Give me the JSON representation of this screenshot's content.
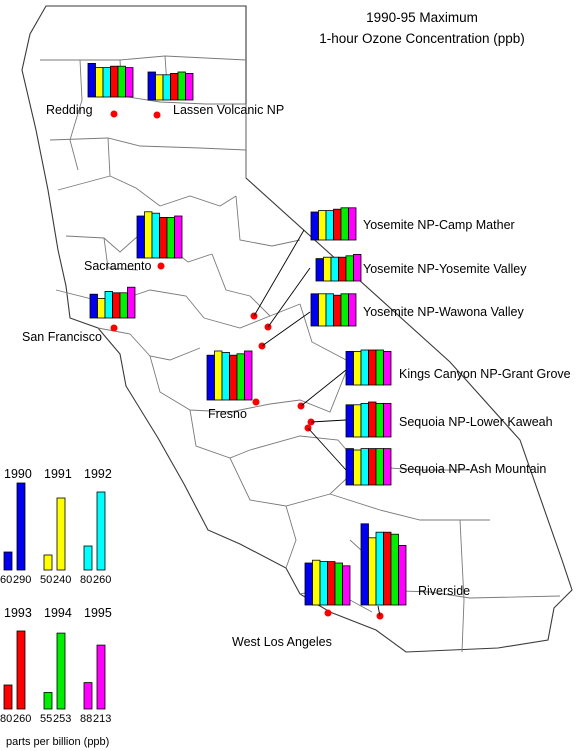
{
  "title": {
    "line1": "1990-95 Maximum",
    "line2": "1-hour Ozone Concentration (ppb)"
  },
  "colors": {
    "1990": "#0000ee",
    "1991": "#ffff00",
    "1992": "#00ffff",
    "1993": "#ff0000",
    "1994": "#00ee00",
    "1995": "#ff00ff",
    "site_dot": "#ff0000",
    "county_line": "#7a7a7a"
  },
  "chart_data": {
    "type": "bar",
    "title": "1990-95 Maximum 1-hour Ozone Concentration (ppb)",
    "unit": "parts per billion (ppb)",
    "series_years": [
      "1990",
      "1991",
      "1992",
      "1993",
      "1994",
      "1995"
    ],
    "sites": [
      {
        "name": "Redding",
        "values": [
          120,
          105,
          105,
          110,
          110,
          105
        ]
      },
      {
        "name": "Lassen Volcanic NP",
        "values": [
          100,
          90,
          90,
          95,
          100,
          95
        ]
      },
      {
        "name": "Sacramento",
        "values": [
          150,
          165,
          160,
          145,
          145,
          150
        ]
      },
      {
        "name": "San Francisco",
        "values": [
          85,
          70,
          95,
          90,
          90,
          110
        ]
      },
      {
        "name": "Yosemite NP-Camp Mather",
        "values": [
          100,
          105,
          105,
          110,
          115,
          115
        ]
      },
      {
        "name": "Yosemite NP-Yosemite Valley",
        "values": [
          80,
          85,
          85,
          85,
          90,
          95
        ]
      },
      {
        "name": "Yosemite NP-Wawona Valley",
        "values": [
          115,
          115,
          115,
          110,
          115,
          115
        ]
      },
      {
        "name": "Fresno",
        "values": [
          160,
          175,
          170,
          160,
          165,
          175
        ]
      },
      {
        "name": "Kings Canyon NP-Grant Grove",
        "values": [
          120,
          120,
          125,
          125,
          125,
          120
        ]
      },
      {
        "name": "Sequoia NP-Lower Kaweah",
        "values": [
          115,
          115,
          120,
          125,
          120,
          120
        ]
      },
      {
        "name": "Sequoia NP-Ash Mountain",
        "values": [
          130,
          125,
          130,
          130,
          130,
          130
        ]
      },
      {
        "name": "West Los Angeles",
        "values": [
          150,
          160,
          155,
          155,
          150,
          140
        ]
      },
      {
        "name": "Riverside",
        "values": [
          290,
          240,
          260,
          260,
          253,
          213
        ]
      }
    ],
    "scale_legend": [
      {
        "year": "1990",
        "low": 60,
        "high": 290
      },
      {
        "year": "1991",
        "low": 50,
        "high": 240
      },
      {
        "year": "1992",
        "low": 80,
        "high": 260
      },
      {
        "year": "1993",
        "low": 80,
        "high": 260
      },
      {
        "year": "1994",
        "low": 55,
        "high": 253
      },
      {
        "year": "1995",
        "low": 88,
        "high": 213
      }
    ]
  },
  "legend": {
    "unit_label": "parts per billion (ppb)"
  }
}
